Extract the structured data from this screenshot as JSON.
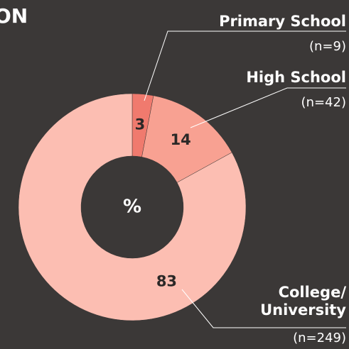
{
  "chart_data": {
    "type": "donut",
    "title": "ON",
    "categories": [
      "Primary School",
      "High School",
      "College/\nUniversity"
    ],
    "values": [
      3,
      14,
      83
    ],
    "n_labels": [
      "(n=9)",
      "(n=42)",
      "(n=249)"
    ],
    "colors": [
      "#f07a6e",
      "#f8a192",
      "#fcbeb2"
    ],
    "center_label": "%"
  }
}
